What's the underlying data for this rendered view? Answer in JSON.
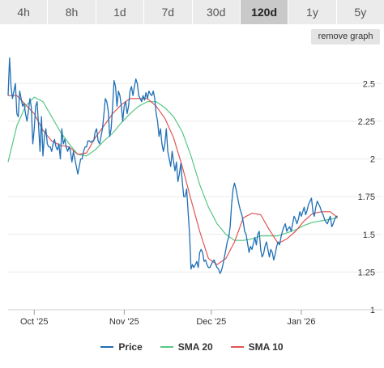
{
  "tabs": [
    {
      "label": "4h",
      "active": false
    },
    {
      "label": "8h",
      "active": false
    },
    {
      "label": "1d",
      "active": false
    },
    {
      "label": "7d",
      "active": false
    },
    {
      "label": "30d",
      "active": false
    },
    {
      "label": "120d",
      "active": true
    },
    {
      "label": "1y",
      "active": false
    },
    {
      "label": "5y",
      "active": false
    }
  ],
  "remove_graph_label": "remove graph",
  "colors": {
    "price": "#1f6fb5",
    "sma20": "#57c785",
    "sma10": "#e05555",
    "active_tab": "#c9c9c9",
    "tab": "#ebebeb"
  },
  "legend": [
    {
      "label": "Price",
      "color": "#1f6fb5"
    },
    {
      "label": "SMA 20",
      "color": "#57c785"
    },
    {
      "label": "SMA 10",
      "color": "#e05555"
    }
  ],
  "chart_data": {
    "type": "line",
    "title": "",
    "xlabel": "",
    "ylabel": "",
    "ylim": [
      1,
      2.7
    ],
    "yticks": [
      "1",
      "1.25",
      "1.5",
      "1.75",
      "2",
      "2.25",
      "2.5"
    ],
    "y_axis_position": "right",
    "xticks": [
      {
        "label": "Oct '25",
        "day": 20
      },
      {
        "label": "Nov '25",
        "day": 51
      },
      {
        "label": "Dec '25",
        "day": 81
      },
      {
        "label": "Jan '26",
        "day": 112
      }
    ],
    "xlim_day": [
      11,
      131
    ],
    "grid": "horizontal",
    "legend_position": "bottom",
    "series": [
      {
        "name": "Price",
        "points": [
          [
            11.0,
            2.42
          ],
          [
            11.5,
            2.67
          ],
          [
            12.0,
            2.48
          ],
          [
            12.5,
            2.4
          ],
          [
            13.0,
            2.45
          ],
          [
            13.5,
            2.5
          ],
          [
            14.0,
            2.3
          ],
          [
            14.5,
            2.28
          ],
          [
            15.0,
            2.45
          ],
          [
            15.5,
            2.4
          ],
          [
            16.0,
            2.35
          ],
          [
            16.5,
            2.37
          ],
          [
            17.0,
            2.3
          ],
          [
            17.5,
            2.25
          ],
          [
            18.0,
            2.32
          ],
          [
            18.5,
            2.4
          ],
          [
            19.0,
            2.34
          ],
          [
            19.5,
            2.1
          ],
          [
            20.0,
            2.2
          ],
          [
            20.5,
            2.35
          ],
          [
            21.0,
            2.38
          ],
          [
            21.5,
            2.22
          ],
          [
            22.0,
            2.05
          ],
          [
            22.5,
            2.28
          ],
          [
            23.0,
            2.02
          ],
          [
            23.5,
            2.15
          ],
          [
            24.0,
            2.2
          ],
          [
            24.5,
            2.1
          ],
          [
            25.0,
            2.08
          ],
          [
            25.5,
            2.08
          ],
          [
            26.0,
            2.05
          ],
          [
            26.5,
            2.1
          ],
          [
            27.0,
            2.13
          ],
          [
            27.5,
            2.08
          ],
          [
            28.0,
            2.06
          ],
          [
            28.5,
            2.1
          ],
          [
            29.0,
            2.0
          ],
          [
            29.5,
            2.2
          ],
          [
            30.0,
            2.1
          ],
          [
            30.5,
            2.13
          ],
          [
            31.0,
            2.08
          ],
          [
            31.5,
            2.05
          ],
          [
            32.0,
            2.08
          ],
          [
            32.5,
            2.05
          ],
          [
            33.0,
            1.98
          ],
          [
            33.5,
            2.05
          ],
          [
            34.0,
            2.0
          ],
          [
            34.5,
            1.95
          ],
          [
            35.0,
            1.9
          ],
          [
            35.5,
            1.95
          ],
          [
            36.0,
            2.0
          ],
          [
            36.5,
            2.0
          ],
          [
            37.0,
            2.05
          ],
          [
            37.5,
            2.08
          ],
          [
            38.0,
            2.08
          ],
          [
            38.5,
            2.12
          ],
          [
            39.0,
            2.12
          ],
          [
            39.5,
            2.11
          ],
          [
            40.0,
            2.12
          ],
          [
            40.5,
            2.12
          ],
          [
            41.0,
            2.18
          ],
          [
            41.5,
            2.2
          ],
          [
            42.0,
            2.12
          ],
          [
            42.5,
            2.1
          ],
          [
            43.0,
            2.15
          ],
          [
            43.5,
            2.2
          ],
          [
            44.0,
            2.3
          ],
          [
            44.5,
            2.4
          ],
          [
            45.0,
            2.38
          ],
          [
            45.5,
            2.32
          ],
          [
            46.0,
            2.15
          ],
          [
            46.5,
            2.2
          ],
          [
            47.0,
            2.35
          ],
          [
            47.5,
            2.52
          ],
          [
            48.0,
            2.48
          ],
          [
            48.5,
            2.35
          ],
          [
            49.0,
            2.45
          ],
          [
            49.5,
            2.42
          ],
          [
            50.0,
            2.35
          ],
          [
            50.5,
            2.25
          ],
          [
            51.0,
            2.35
          ],
          [
            51.5,
            2.38
          ],
          [
            52.0,
            2.3
          ],
          [
            52.5,
            2.35
          ],
          [
            53.0,
            2.45
          ],
          [
            53.5,
            2.48
          ],
          [
            54.0,
            2.42
          ],
          [
            54.5,
            2.48
          ],
          [
            55.0,
            2.53
          ],
          [
            55.5,
            2.5
          ],
          [
            56.0,
            2.42
          ],
          [
            56.5,
            2.4
          ],
          [
            57.0,
            2.38
          ],
          [
            57.5,
            2.42
          ],
          [
            58.0,
            2.39
          ],
          [
            58.5,
            2.44
          ],
          [
            59.0,
            2.4
          ],
          [
            59.5,
            2.45
          ],
          [
            60.0,
            2.43
          ],
          [
            60.5,
            2.42
          ],
          [
            61.0,
            2.45
          ],
          [
            61.5,
            2.4
          ],
          [
            62.0,
            2.3
          ],
          [
            62.5,
            2.25
          ],
          [
            63.0,
            2.15
          ],
          [
            63.5,
            2.2
          ],
          [
            64.0,
            2.1
          ],
          [
            64.5,
            2.05
          ],
          [
            65.0,
            2.1
          ],
          [
            65.5,
            2.2
          ],
          [
            66.0,
            2.05
          ],
          [
            66.5,
            2.0
          ],
          [
            67.0,
            1.95
          ],
          [
            67.5,
            2.05
          ],
          [
            68.0,
            1.98
          ],
          [
            68.5,
            1.92
          ],
          [
            69.0,
            1.98
          ],
          [
            69.5,
            1.85
          ],
          [
            70.0,
            1.9
          ],
          [
            70.5,
            1.97
          ],
          [
            71.0,
            1.85
          ],
          [
            71.5,
            1.75
          ],
          [
            72.0,
            1.75
          ],
          [
            72.5,
            1.8
          ],
          [
            73.0,
            1.65
          ],
          [
            73.5,
            1.5
          ],
          [
            74.0,
            1.27
          ],
          [
            74.5,
            1.3
          ],
          [
            75.0,
            1.28
          ],
          [
            75.5,
            1.3
          ],
          [
            76.0,
            1.32
          ],
          [
            76.5,
            1.28
          ],
          [
            77.0,
            1.38
          ],
          [
            77.5,
            1.4
          ],
          [
            78.0,
            1.38
          ],
          [
            78.5,
            1.32
          ],
          [
            79.0,
            1.33
          ],
          [
            79.5,
            1.3
          ],
          [
            80.0,
            1.28
          ],
          [
            80.5,
            1.28
          ],
          [
            81.0,
            1.3
          ],
          [
            81.5,
            1.32
          ],
          [
            82.0,
            1.33
          ],
          [
            82.5,
            1.3
          ],
          [
            83.0,
            1.28
          ],
          [
            83.5,
            1.27
          ],
          [
            84.0,
            1.24
          ],
          [
            84.5,
            1.26
          ],
          [
            85.0,
            1.3
          ],
          [
            85.5,
            1.35
          ],
          [
            86.0,
            1.4
          ],
          [
            86.5,
            1.45
          ],
          [
            87.0,
            1.48
          ],
          [
            87.5,
            1.55
          ],
          [
            88.0,
            1.7
          ],
          [
            88.5,
            1.8
          ],
          [
            89.0,
            1.84
          ],
          [
            89.5,
            1.8
          ],
          [
            90.0,
            1.75
          ],
          [
            90.5,
            1.7
          ],
          [
            91.0,
            1.66
          ],
          [
            91.5,
            1.63
          ],
          [
            92.0,
            1.58
          ],
          [
            92.5,
            1.52
          ],
          [
            93.0,
            1.5
          ],
          [
            93.5,
            1.44
          ],
          [
            94.0,
            1.38
          ],
          [
            94.5,
            1.42
          ],
          [
            95.0,
            1.4
          ],
          [
            95.5,
            1.44
          ],
          [
            96.0,
            1.48
          ],
          [
            96.5,
            1.43
          ],
          [
            97.0,
            1.5
          ],
          [
            97.5,
            1.52
          ],
          [
            98.0,
            1.4
          ],
          [
            98.5,
            1.35
          ],
          [
            99.0,
            1.37
          ],
          [
            99.5,
            1.42
          ],
          [
            100.0,
            1.45
          ],
          [
            100.5,
            1.4
          ],
          [
            101.0,
            1.35
          ],
          [
            101.5,
            1.4
          ],
          [
            102.0,
            1.38
          ],
          [
            102.5,
            1.33
          ],
          [
            103.0,
            1.37
          ],
          [
            103.5,
            1.42
          ],
          [
            104.0,
            1.45
          ],
          [
            104.5,
            1.43
          ],
          [
            105.0,
            1.48
          ],
          [
            105.5,
            1.52
          ],
          [
            106.0,
            1.55
          ],
          [
            106.5,
            1.57
          ],
          [
            107.0,
            1.52
          ],
          [
            107.5,
            1.54
          ],
          [
            108.0,
            1.55
          ],
          [
            108.5,
            1.52
          ],
          [
            109.0,
            1.57
          ],
          [
            109.5,
            1.62
          ],
          [
            110.0,
            1.6
          ],
          [
            110.5,
            1.57
          ],
          [
            111.0,
            1.6
          ],
          [
            111.5,
            1.65
          ],
          [
            112.0,
            1.62
          ],
          [
            112.5,
            1.65
          ],
          [
            113.0,
            1.68
          ],
          [
            113.5,
            1.63
          ],
          [
            114.0,
            1.66
          ],
          [
            114.5,
            1.7
          ],
          [
            115.0,
            1.72
          ],
          [
            115.5,
            1.74
          ],
          [
            116.0,
            1.65
          ],
          [
            116.5,
            1.62
          ],
          [
            117.0,
            1.68
          ],
          [
            117.5,
            1.72
          ],
          [
            118.0,
            1.7
          ],
          [
            118.5,
            1.68
          ],
          [
            119.0,
            1.65
          ],
          [
            119.5,
            1.63
          ],
          [
            120.0,
            1.6
          ],
          [
            120.5,
            1.58
          ],
          [
            121.0,
            1.57
          ],
          [
            121.5,
            1.6
          ],
          [
            122.0,
            1.62
          ],
          [
            122.5,
            1.55
          ],
          [
            123.0,
            1.57
          ],
          [
            123.5,
            1.6
          ],
          [
            124.0,
            1.62
          ],
          [
            124.5,
            1.62
          ]
        ]
      },
      {
        "name": "SMA 20",
        "points": [
          [
            11,
            1.98
          ],
          [
            14,
            2.22
          ],
          [
            17,
            2.35
          ],
          [
            20,
            2.41
          ],
          [
            23,
            2.38
          ],
          [
            26,
            2.28
          ],
          [
            29,
            2.18
          ],
          [
            32,
            2.1
          ],
          [
            35,
            2.03
          ],
          [
            38,
            2.02
          ],
          [
            41,
            2.06
          ],
          [
            44,
            2.12
          ],
          [
            47,
            2.17
          ],
          [
            50,
            2.24
          ],
          [
            53,
            2.3
          ],
          [
            56,
            2.35
          ],
          [
            59,
            2.38
          ],
          [
            62,
            2.38
          ],
          [
            65,
            2.34
          ],
          [
            68,
            2.28
          ],
          [
            71,
            2.18
          ],
          [
            74,
            2.02
          ],
          [
            77,
            1.83
          ],
          [
            80,
            1.68
          ],
          [
            83,
            1.57
          ],
          [
            86,
            1.5
          ],
          [
            89,
            1.46
          ],
          [
            92,
            1.46
          ],
          [
            95,
            1.47
          ],
          [
            98,
            1.49
          ],
          [
            101,
            1.49
          ],
          [
            104,
            1.49
          ],
          [
            107,
            1.51
          ],
          [
            110,
            1.53
          ],
          [
            113,
            1.56
          ],
          [
            116,
            1.58
          ],
          [
            119,
            1.59
          ],
          [
            122,
            1.6
          ],
          [
            124.5,
            1.61
          ]
        ]
      },
      {
        "name": "SMA 10",
        "points": [
          [
            11,
            2.42
          ],
          [
            14,
            2.42
          ],
          [
            17,
            2.36
          ],
          [
            20,
            2.3
          ],
          [
            23,
            2.19
          ],
          [
            26,
            2.12
          ],
          [
            29,
            2.09
          ],
          [
            32,
            2.08
          ],
          [
            35,
            2.03
          ],
          [
            38,
            2.04
          ],
          [
            41,
            2.14
          ],
          [
            44,
            2.22
          ],
          [
            47,
            2.3
          ],
          [
            50,
            2.36
          ],
          [
            53,
            2.4
          ],
          [
            56,
            2.4
          ],
          [
            59,
            2.4
          ],
          [
            62,
            2.35
          ],
          [
            65,
            2.27
          ],
          [
            68,
            2.14
          ],
          [
            71,
            1.95
          ],
          [
            74,
            1.73
          ],
          [
            77,
            1.52
          ],
          [
            80,
            1.34
          ],
          [
            83,
            1.3
          ],
          [
            86,
            1.34
          ],
          [
            89,
            1.45
          ],
          [
            92,
            1.61
          ],
          [
            95,
            1.64
          ],
          [
            98,
            1.63
          ],
          [
            101,
            1.53
          ],
          [
            104,
            1.44
          ],
          [
            107,
            1.47
          ],
          [
            110,
            1.52
          ],
          [
            113,
            1.59
          ],
          [
            116,
            1.64
          ],
          [
            119,
            1.65
          ],
          [
            122,
            1.65
          ],
          [
            124.5,
            1.61
          ]
        ]
      }
    ]
  }
}
